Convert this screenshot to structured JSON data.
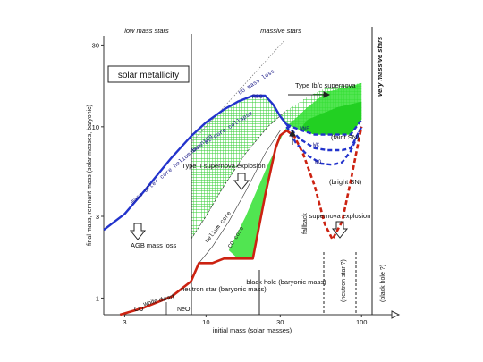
{
  "chart_data": {
    "type": "line",
    "title": "solar metallicity",
    "xlabel": "initial mass (solar masses)",
    "ylabel": "final mass, remnant mass (solar masses, baryonic)",
    "xscale": "log",
    "yscale": "log",
    "xlim": [
      2.2,
      120
    ],
    "ylim": [
      0.8,
      34
    ],
    "x_ticks": [
      3,
      10,
      30,
      100
    ],
    "y_ticks": [
      1,
      3,
      10,
      30
    ],
    "grid": false,
    "top_labels": [
      "low mass stars",
      "massive stars",
      "very massive stars"
    ],
    "series": [
      {
        "name": "mass after core helium burning",
        "color": "#2233cc",
        "style": "solid",
        "points": [
          [
            2.2,
            2.5
          ],
          [
            3,
            3.1
          ],
          [
            4,
            4.2
          ],
          [
            5,
            5.4
          ],
          [
            6,
            6.6
          ],
          [
            8,
            8.8
          ],
          [
            10,
            10.6
          ],
          [
            13,
            12.6
          ],
          [
            16,
            14
          ],
          [
            20,
            15.2
          ],
          [
            24,
            15.2
          ],
          [
            27,
            13.5
          ],
          [
            30,
            11.5
          ],
          [
            33,
            10.3
          ]
        ]
      },
      {
        "name": "mass at core collapse",
        "color": "#2233cc",
        "style": "dashed",
        "points": [
          [
            33,
            10.3
          ],
          [
            40,
            9.6
          ],
          [
            50,
            9
          ],
          [
            60,
            9
          ],
          [
            75,
            9
          ],
          [
            85,
            9
          ],
          [
            100,
            11
          ]
        ]
      },
      {
        "name": "",
        "color": "#2233cc",
        "style": "dashed",
        "points": [
          [
            33,
            10.3
          ],
          [
            40,
            8.5
          ],
          [
            50,
            7.5
          ],
          [
            60,
            7.3
          ],
          [
            75,
            7.3
          ],
          [
            85,
            7.5
          ],
          [
            100,
            10
          ]
        ]
      },
      {
        "name": "",
        "color": "#2233cc",
        "style": "dashed",
        "points": [
          [
            33,
            10
          ],
          [
            38,
            8
          ],
          [
            45,
            6.8
          ],
          [
            55,
            6.1
          ],
          [
            65,
            6
          ],
          [
            75,
            6.2
          ],
          [
            85,
            7.2
          ],
          [
            100,
            10
          ]
        ]
      },
      {
        "name": "remnant mass",
        "color": "#cc2211",
        "style": "solid",
        "points": [
          [
            2.8,
            0.8
          ],
          [
            4,
            0.88
          ],
          [
            6,
            1.02
          ],
          [
            8,
            1.25
          ],
          [
            9,
            1.6
          ],
          [
            11,
            1.6
          ],
          [
            13,
            1.7
          ],
          [
            16,
            1.7
          ],
          [
            20,
            1.7
          ],
          [
            24,
            4
          ],
          [
            28,
            7.5
          ],
          [
            30,
            8.9
          ],
          [
            33,
            9.5
          ]
        ]
      },
      {
        "name": "",
        "color": "#cc2211",
        "style": "dashed",
        "points": [
          [
            33,
            9.5
          ],
          [
            37,
            8.8
          ],
          [
            42,
            7
          ],
          [
            50,
            4.5
          ],
          [
            58,
            2.7
          ],
          [
            65,
            2.2
          ],
          [
            75,
            2.8
          ],
          [
            85,
            4.8
          ],
          [
            95,
            8
          ],
          [
            100,
            10
          ]
        ]
      }
    ],
    "annotations": [
      "no mass loss",
      "RSG",
      "Type Ib/c supernova",
      "mass after core helium burning",
      "mass at core collapse",
      "Type II supernova explosion",
      "helium core",
      "CO core",
      "AGB mass loss",
      "white dwarf",
      "CO",
      "NeO",
      "neutron star (baryonic mass)",
      "black hole (baryonic mass)",
      "fallback",
      "WNE",
      "WC",
      "WO",
      "(faint SN)",
      "(bright SN)",
      "supernova explosion",
      "(neutron star ?)",
      "(black hole ?)"
    ]
  }
}
